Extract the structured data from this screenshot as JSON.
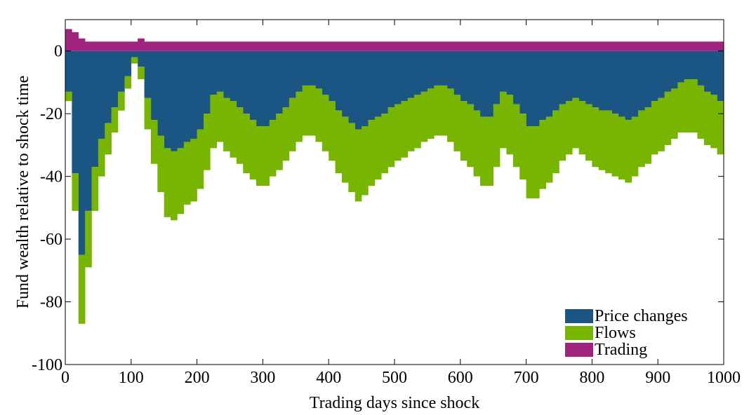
{
  "chart_data": {
    "type": "bar",
    "stacked": true,
    "xlabel": "Trading days since shock",
    "ylabel": "Fund wealth relative to shock time",
    "x": [
      5,
      15,
      25,
      35,
      45,
      55,
      65,
      75,
      85,
      95,
      105,
      115,
      125,
      135,
      145,
      155,
      165,
      175,
      185,
      195,
      205,
      215,
      225,
      235,
      245,
      255,
      265,
      275,
      285,
      295,
      305,
      315,
      325,
      335,
      345,
      355,
      365,
      375,
      385,
      395,
      405,
      415,
      425,
      435,
      445,
      455,
      465,
      475,
      485,
      495,
      505,
      515,
      525,
      535,
      545,
      555,
      565,
      575,
      585,
      595,
      605,
      615,
      625,
      635,
      645,
      655,
      665,
      675,
      685,
      695,
      705,
      715,
      725,
      735,
      745,
      755,
      765,
      775,
      785,
      795,
      805,
      815,
      825,
      835,
      845,
      855,
      865,
      875,
      885,
      895,
      905,
      915,
      925,
      935,
      945,
      955,
      965,
      975,
      985,
      995
    ],
    "series": [
      {
        "name": "Price changes",
        "color": "#1a5583",
        "values": [
          -13,
          -39,
          -65,
          -51,
          -37,
          -28,
          -23,
          -18,
          -13,
          -8,
          -2,
          -5,
          -15,
          -22,
          -27,
          -31,
          -32,
          -31,
          -29,
          -28,
          -25,
          -20,
          -14,
          -13,
          -15,
          -16,
          -18,
          -20,
          -22,
          -24,
          -24,
          -22,
          -20,
          -18,
          -15,
          -13,
          -11,
          -11,
          -12,
          -14,
          -16,
          -19,
          -21,
          -23,
          -25,
          -24,
          -22,
          -21,
          -20,
          -18,
          -17,
          -16,
          -15,
          -14,
          -13,
          -12,
          -11,
          -11,
          -12,
          -14,
          -16,
          -17,
          -19,
          -21,
          -21,
          -17,
          -13,
          -14,
          -17,
          -20,
          -24,
          -24,
          -22,
          -21,
          -19,
          -17,
          -16,
          -15,
          -16,
          -17,
          -18,
          -19,
          -19,
          -20,
          -21,
          -22,
          -21,
          -19,
          -18,
          -16,
          -15,
          -13,
          -12,
          -10,
          -9,
          -9,
          -11,
          -13,
          -14,
          -16
        ]
      },
      {
        "name": "Flows",
        "color": "#78b500",
        "values": [
          -3,
          -12,
          -22,
          -18,
          -14,
          -12,
          -10,
          -8,
          -6,
          -4,
          -2,
          -4,
          -10,
          -14,
          -18,
          -22,
          -22,
          -21,
          -20,
          -20,
          -19,
          -18,
          -17,
          -16,
          -17,
          -18,
          -18,
          -19,
          -19,
          -19,
          -19,
          -18,
          -18,
          -17,
          -17,
          -16,
          -16,
          -16,
          -17,
          -18,
          -19,
          -20,
          -21,
          -22,
          -23,
          -22,
          -21,
          -20,
          -19,
          -19,
          -18,
          -18,
          -17,
          -17,
          -16,
          -16,
          -16,
          -16,
          -17,
          -18,
          -19,
          -20,
          -21,
          -22,
          -22,
          -20,
          -18,
          -19,
          -20,
          -21,
          -23,
          -23,
          -22,
          -21,
          -20,
          -18,
          -17,
          -16,
          -17,
          -18,
          -19,
          -19,
          -20,
          -20,
          -20,
          -20,
          -19,
          -18,
          -18,
          -17,
          -17,
          -17,
          -16,
          -16,
          -17,
          -17,
          -17,
          -17,
          -17,
          -17
        ]
      },
      {
        "name": "Trading",
        "color": "#a0237d",
        "values": [
          7,
          6,
          4,
          3,
          3,
          3,
          3,
          3,
          3,
          3,
          3,
          4,
          3,
          3,
          3,
          3,
          3,
          3,
          3,
          3,
          3,
          3,
          3,
          3,
          3,
          3,
          3,
          3,
          3,
          3,
          3,
          3,
          3,
          3,
          3,
          3,
          3,
          3,
          3,
          3,
          3,
          3,
          3,
          3,
          3,
          3,
          3,
          3,
          3,
          3,
          3,
          3,
          3,
          3,
          3,
          3,
          3,
          3,
          3,
          3,
          3,
          3,
          3,
          3,
          3,
          3,
          3,
          3,
          3,
          3,
          3,
          3,
          3,
          3,
          3,
          3,
          3,
          3,
          3,
          3,
          3,
          3,
          3,
          3,
          3,
          3,
          3,
          3,
          3,
          3,
          3,
          3,
          3,
          3,
          3,
          3,
          3,
          3,
          3,
          3
        ]
      }
    ],
    "bar_width": 10,
    "xlim": [
      0,
      1000
    ],
    "xticks": [
      0,
      100,
      200,
      300,
      400,
      500,
      600,
      700,
      800,
      900,
      1000
    ],
    "ylim": [
      -100,
      10
    ],
    "yticks": [
      -100,
      -80,
      -60,
      -40,
      -20,
      0
    ],
    "legend": "lower right"
  }
}
